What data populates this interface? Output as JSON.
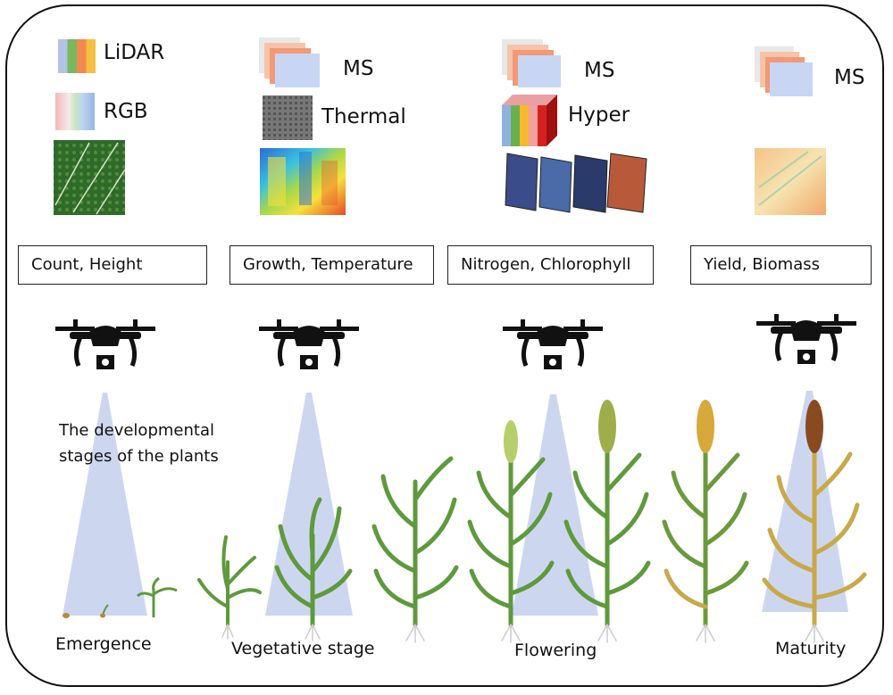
{
  "sensors": [
    {
      "label": "LiDAR",
      "icon": "lidar-icon"
    },
    {
      "label": "RGB",
      "icon": "rgb-icon"
    },
    {
      "label": "MS",
      "icon": "multispectral-icon"
    },
    {
      "label": "Thermal",
      "icon": "thermal-icon"
    },
    {
      "label": "MS",
      "icon": "multispectral-icon"
    },
    {
      "label": "Hyper",
      "icon": "hyperspectral-cube-icon"
    },
    {
      "label": "MS",
      "icon": "multispectral-icon"
    }
  ],
  "traits": [
    "Count, Height",
    "Growth, Temperature",
    "Nitrogen, Chlorophyll",
    "Yield, Biomass"
  ],
  "note": {
    "line1": "The developmental",
    "line2": "stages of the plants"
  },
  "stages": [
    "Emergence",
    "Vegetative stage",
    "Flowering",
    "Maturity"
  ],
  "colors": {
    "frame": "#111111",
    "beam": "#c9d5ee",
    "leaf": "#5e9a3c",
    "leaf_dry": "#c9a84a",
    "drone": "#111111"
  }
}
